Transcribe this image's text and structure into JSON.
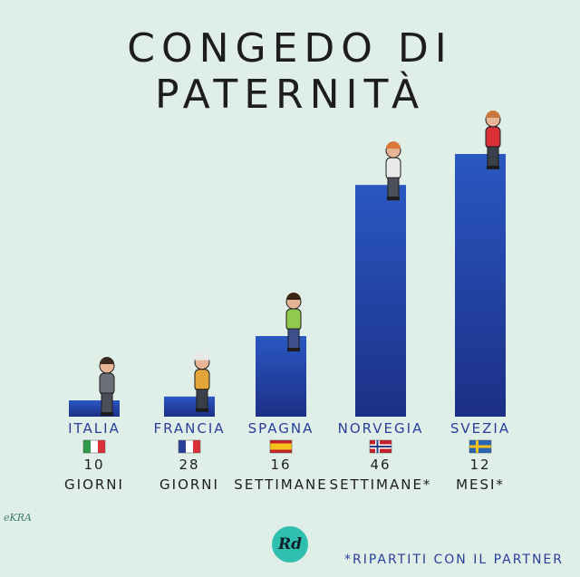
{
  "chart_data": {
    "type": "bar",
    "title": "CONGEDO DI PATERNITÀ",
    "categories": [
      "ITALIA",
      "FRANCIA",
      "SPAGNA",
      "NORVEGIA",
      "SVEZIA"
    ],
    "flags": [
      "it",
      "fr",
      "es",
      "no",
      "se"
    ],
    "value_labels": [
      [
        "10",
        "GIORNI"
      ],
      [
        "28",
        "GIORNI"
      ],
      [
        "16",
        "SETTIMANE"
      ],
      [
        "46",
        "SETTIMANE*"
      ],
      [
        "12",
        "MESI*"
      ]
    ],
    "values_days": [
      10,
      28,
      112,
      322,
      365
    ],
    "bar_color": "#2646a8"
  },
  "signature": "eKRA",
  "logo_text": "Rd",
  "footnote": "*RIPARTITI CON IL PARTNER"
}
